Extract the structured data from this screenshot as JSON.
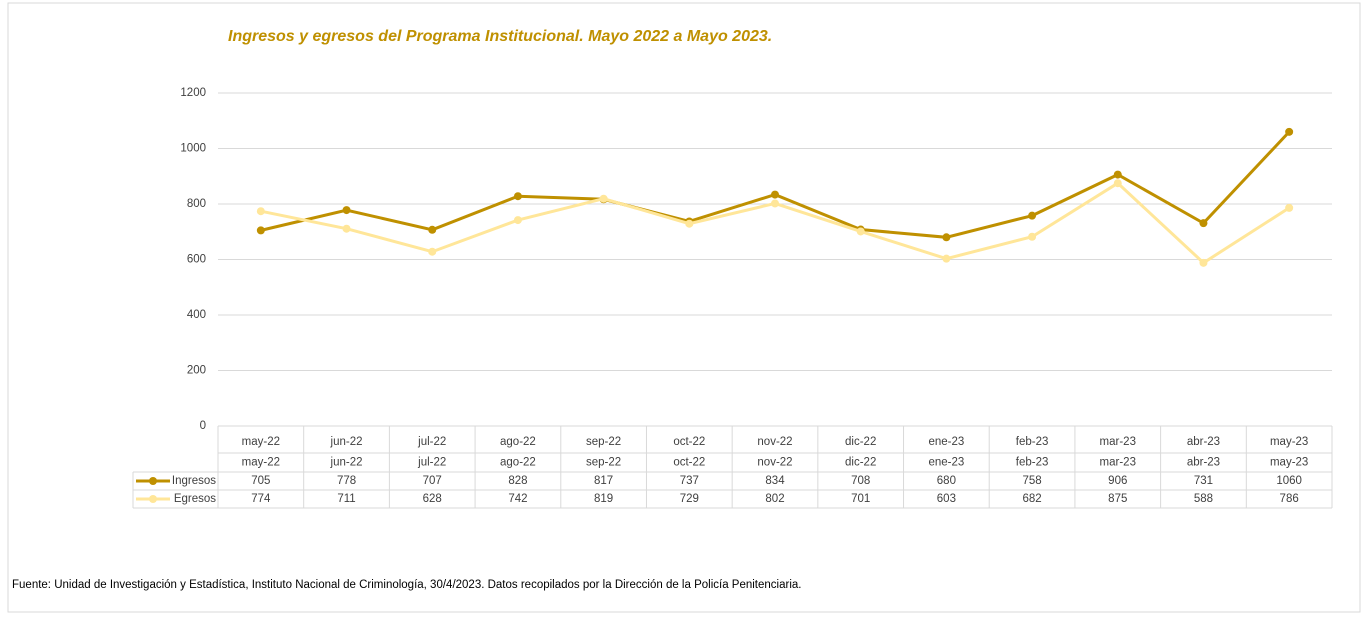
{
  "chart_data": {
    "type": "line",
    "title": "Ingresos y egresos del Programa Institucional.  Mayo 2022 a Mayo 2023.",
    "categories": [
      "may-22",
      "jun-22",
      "jul-22",
      "ago-22",
      "sep-22",
      "oct-22",
      "nov-22",
      "dic-22",
      "ene-23",
      "feb-23",
      "mar-23",
      "abr-23",
      "may-23"
    ],
    "series": [
      {
        "name": "Ingresos",
        "color": "#bf9000",
        "values": [
          705,
          778,
          707,
          828,
          817,
          737,
          834,
          708,
          680,
          758,
          906,
          731,
          1060
        ]
      },
      {
        "name": "Egresos",
        "color": "#ffe699",
        "values": [
          774,
          711,
          628,
          742,
          819,
          729,
          802,
          701,
          603,
          682,
          875,
          588,
          786
        ]
      }
    ],
    "ylim": [
      0,
      1200
    ],
    "yticks": [
      0,
      200,
      400,
      600,
      800,
      1000,
      1200
    ],
    "grid": true,
    "source": "Fuente: Unidad de Investigación y Estadística, Instituto Nacional de Criminología, 30/4/2023. Datos recopilados por la Dirección de la Policía Penitenciaria."
  }
}
